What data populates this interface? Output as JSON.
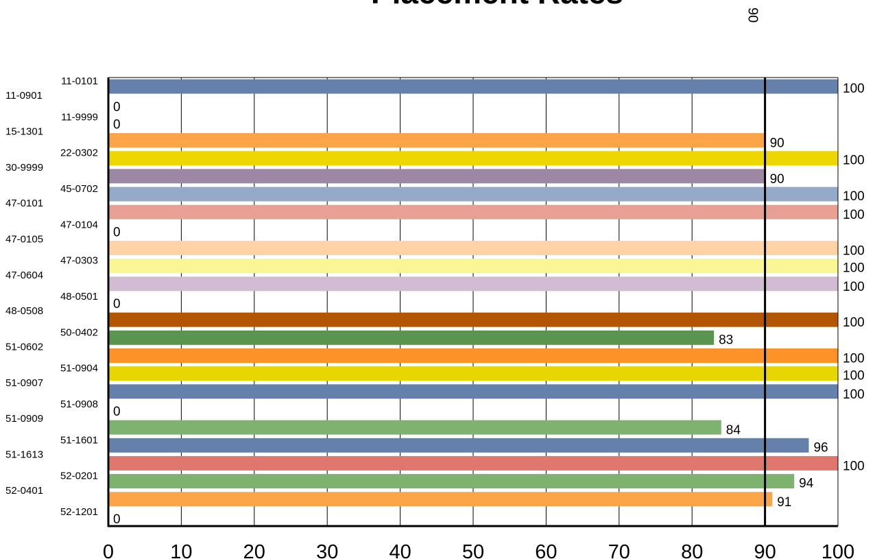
{
  "chart_data": {
    "type": "bar",
    "orientation": "horizontal",
    "title": "Placement Rates",
    "xlabel": "",
    "ylabel": "",
    "xlim": [
      0,
      100
    ],
    "x_ticks": [
      0,
      10,
      20,
      30,
      40,
      50,
      60,
      70,
      80,
      90,
      100
    ],
    "grid": "vertical",
    "legend": "none",
    "reference_line": {
      "value": 90,
      "label": "90"
    },
    "categories": [
      "11-0101",
      "11-0901",
      "11-9999",
      "15-1301",
      "22-0302",
      "30-9999",
      "45-0702",
      "47-0101",
      "47-0104",
      "47-0105",
      "47-0303",
      "47-0604",
      "48-0501",
      "48-0508",
      "50-0402",
      "51-0602",
      "51-0904",
      "51-0907",
      "51-0908",
      "51-0909",
      "51-1601",
      "51-1613",
      "52-0201",
      "52-0401",
      "52-1201"
    ],
    "values": [
      100,
      0,
      0,
      90,
      100,
      90,
      100,
      100,
      0,
      100,
      100,
      100,
      0,
      100,
      83,
      100,
      100,
      100,
      0,
      84,
      96,
      100,
      94,
      91,
      0
    ],
    "value_labels": [
      "100",
      "0",
      "0",
      "90",
      "100",
      "90",
      "100",
      "100",
      "0",
      "100",
      "100",
      "100",
      "0",
      "100",
      "83",
      "100",
      "100",
      "100",
      "0",
      "84",
      "96",
      "100",
      "94",
      "91",
      "0"
    ],
    "colors": [
      "#6580AA",
      "#6580AA",
      "#6580AA",
      "#FBA448",
      "#EED700",
      "#9D88A3",
      "#94AAC8",
      "#E89F94",
      "#E89F94",
      "#FFD3A5",
      "#FAF694",
      "#D2BCD3",
      "#D2BCD3",
      "#B25603",
      "#5B944F",
      "#FD9328",
      "#E7D600",
      "#6580AA",
      "#6580AA",
      "#7EB26F",
      "#6580AA",
      "#E0776E",
      "#7EB26F",
      "#FBA448",
      "#FBA448"
    ]
  }
}
